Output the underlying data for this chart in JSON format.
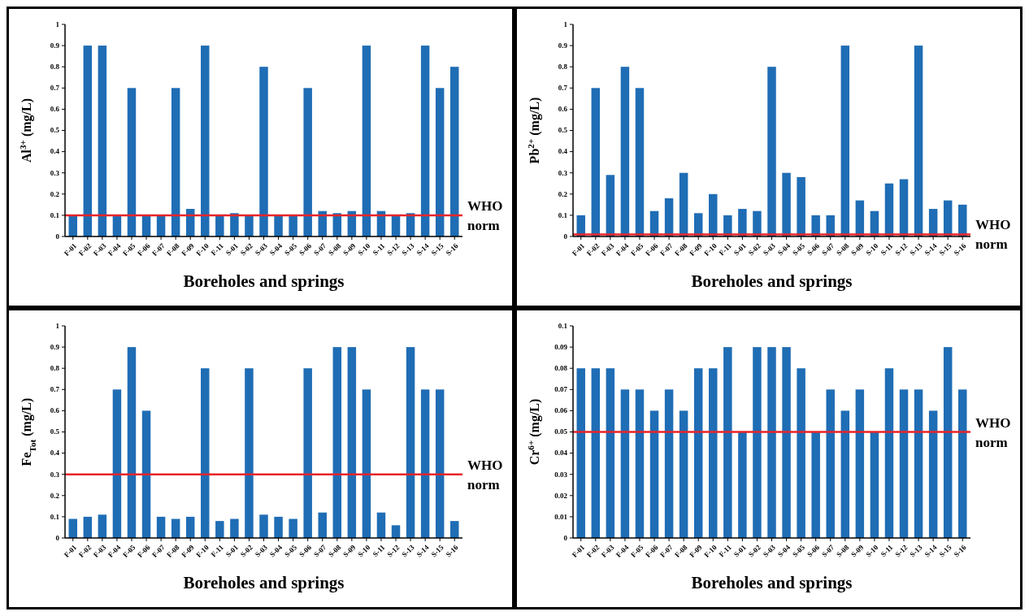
{
  "chart_data": [
    {
      "type": "bar",
      "xlabel": "Boreholes and springs",
      "ylabel": "Al$^{3+}$ (mg/L)",
      "categories": [
        "F-01",
        "F-02",
        "F-03",
        "F-04",
        "F-05",
        "F-06",
        "F-07",
        "F-08",
        "F-09",
        "F-10",
        "F-11",
        "S-01",
        "S-02",
        "S-03",
        "S-04",
        "S-05",
        "S-06",
        "S-07",
        "S-08",
        "S-09",
        "S-10",
        "S-11",
        "S-12",
        "S-13",
        "S-14",
        "S-15",
        "S-16"
      ],
      "values": [
        0.1,
        0.9,
        0.9,
        0.1,
        0.7,
        0.1,
        0.1,
        0.7,
        0.13,
        0.9,
        0.1,
        0.11,
        0.1,
        0.8,
        0.1,
        0.1,
        0.7,
        0.12,
        0.11,
        0.12,
        0.9,
        0.12,
        0.1,
        0.11,
        0.9,
        0.7,
        0.8
      ],
      "color": "#1f6db5",
      "ylim": [
        0,
        1
      ],
      "yticks": [
        0,
        0.1,
        0.2,
        0.3,
        0.4,
        0.5,
        0.6,
        0.7,
        0.8,
        0.9,
        1
      ],
      "ref_lines": [
        {
          "axis": "y",
          "value": 0.1,
          "label": "WHO norm",
          "color": "#e8252a"
        }
      ]
    },
    {
      "type": "bar",
      "xlabel": "Boreholes and springs",
      "ylabel": "Pb$^{2+}$ (mg/L)",
      "categories": [
        "F-01",
        "F-02",
        "F-03",
        "F-04",
        "F-05",
        "F-06",
        "F-07",
        "F-08",
        "F-09",
        "F-10",
        "F-11",
        "S-01",
        "S-02",
        "S-03",
        "S-04",
        "S-05",
        "S-06",
        "S-07",
        "S-08",
        "S-09",
        "S-10",
        "S-11",
        "S-12",
        "S-13",
        "S-14",
        "S-15",
        "S-16"
      ],
      "values": [
        0.1,
        0.7,
        0.29,
        0.8,
        0.7,
        0.12,
        0.18,
        0.3,
        0.11,
        0.2,
        0.1,
        0.13,
        0.12,
        0.8,
        0.3,
        0.28,
        0.1,
        0.1,
        0.9,
        0.17,
        0.12,
        0.25,
        0.27,
        0.9,
        0.13,
        0.17,
        0.15
      ],
      "color": "#1f6db5",
      "ylim": [
        0,
        1
      ],
      "yticks": [
        0,
        0.1,
        0.2,
        0.3,
        0.4,
        0.5,
        0.6,
        0.7,
        0.8,
        0.9,
        1
      ],
      "ref_lines": [
        {
          "axis": "y",
          "value": 0.01,
          "label": "WHO norm",
          "color": "#e8252a"
        }
      ]
    },
    {
      "type": "bar",
      "xlabel": "Boreholes and springs",
      "ylabel": "Fe$_{Tot}$ (mg/L)",
      "categories": [
        "F-01",
        "F-02",
        "F-03",
        "F-04",
        "F-05",
        "F-06",
        "F-07",
        "F-08",
        "F-09",
        "F-10",
        "F-11",
        "S-01",
        "S-02",
        "S-03",
        "S-04",
        "S-05",
        "S-06",
        "S-07",
        "S-08",
        "S-09",
        "S-10",
        "S-11",
        "S-12",
        "S-13",
        "S-14",
        "S-15",
        "S-16"
      ],
      "values": [
        0.09,
        0.1,
        0.11,
        0.7,
        0.9,
        0.6,
        0.1,
        0.09,
        0.1,
        0.8,
        0.08,
        0.09,
        0.8,
        0.11,
        0.1,
        0.09,
        0.8,
        0.12,
        0.9,
        0.9,
        0.7,
        0.12,
        0.06,
        0.9,
        0.7,
        0.7,
        0.08
      ],
      "color": "#1f6db5",
      "ylim": [
        0,
        1
      ],
      "yticks": [
        0,
        0.1,
        0.2,
        0.3,
        0.4,
        0.5,
        0.6,
        0.7,
        0.8,
        0.9,
        1
      ],
      "ref_lines": [
        {
          "axis": "y",
          "value": 0.3,
          "label": "WHO norm",
          "color": "#e8252a"
        }
      ]
    },
    {
      "type": "bar",
      "xlabel": "Boreholes and springs",
      "ylabel": "Cr$^{6+}$ (mg/L)",
      "categories": [
        "F-01",
        "F-02",
        "F-03",
        "F-04",
        "F-05",
        "F-06",
        "F-07",
        "F-08",
        "F-09",
        "F-10",
        "F-11",
        "S-01",
        "S-02",
        "S-03",
        "S-04",
        "S-05",
        "S-06",
        "S-07",
        "S-08",
        "S-09",
        "S-10",
        "S-11",
        "S-12",
        "S-13",
        "S-14",
        "S-15",
        "S-16"
      ],
      "values": [
        0.08,
        0.08,
        0.08,
        0.07,
        0.07,
        0.06,
        0.07,
        0.06,
        0.08,
        0.08,
        0.09,
        0.05,
        0.09,
        0.09,
        0.09,
        0.08,
        0.05,
        0.07,
        0.06,
        0.07,
        0.05,
        0.08,
        0.07,
        0.07,
        0.06,
        0.09,
        0.07
      ],
      "color": "#1f6db5",
      "ylim": [
        0,
        0.1
      ],
      "yticks": [
        0,
        0.01,
        0.02,
        0.03,
        0.04,
        0.05,
        0.06,
        0.07,
        0.08,
        0.09,
        0.1
      ],
      "ref_lines": [
        {
          "axis": "y",
          "value": 0.05,
          "label": "WHO norm",
          "color": "#e8252a"
        }
      ]
    }
  ]
}
